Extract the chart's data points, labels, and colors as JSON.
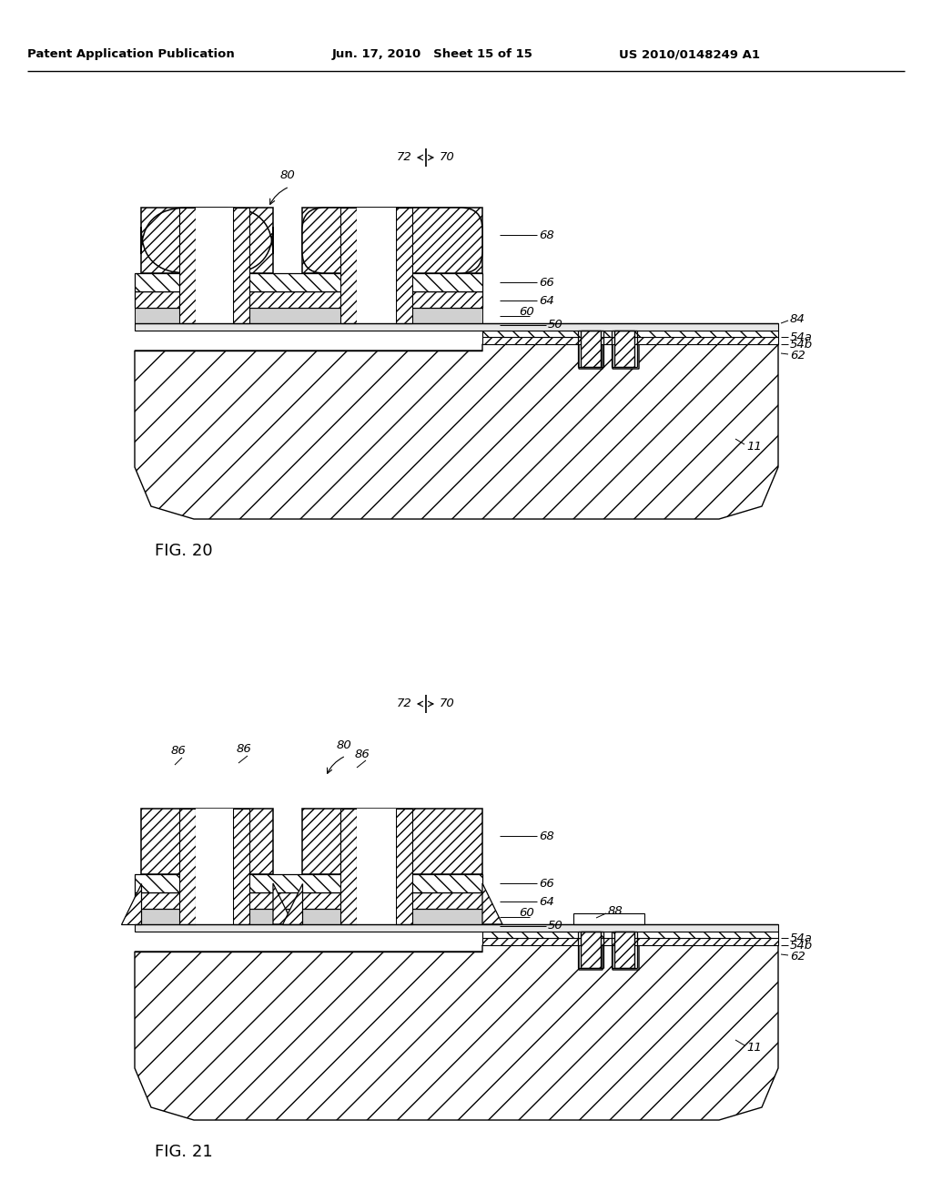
{
  "header_left": "Patent Application Publication",
  "header_mid": "Jun. 17, 2010   Sheet 15 of 15",
  "header_right": "US 2010/0148249 A1",
  "fig20_caption": "FIG. 20",
  "fig21_caption": "FIG. 21",
  "bg": "#ffffff"
}
